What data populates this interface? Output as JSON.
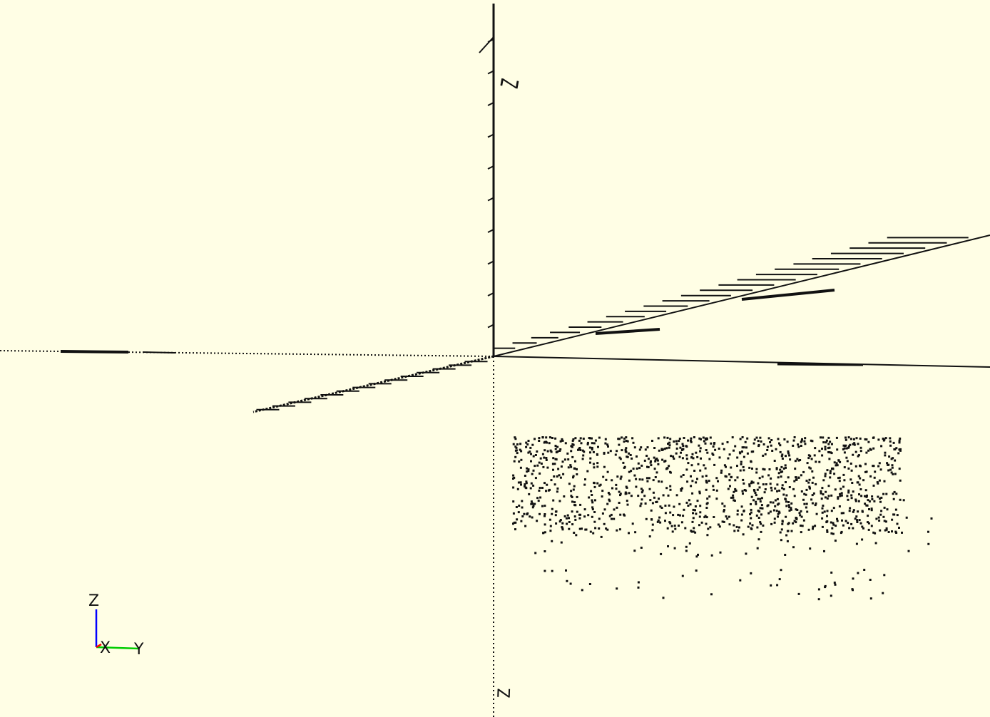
{
  "viewport": {
    "background": "#fffee5",
    "edge_color": "#111111",
    "show_axes": true,
    "show_scale_markers": true,
    "view": "perspective"
  },
  "axis_labels": {
    "z_top": "Z",
    "z_bottom": "Z"
  },
  "orientation_gizmo": {
    "z_label": "Z",
    "x_label": "X",
    "y_label": "Y",
    "x_color": "#ff0000",
    "y_color": "#00cc00",
    "z_color": "#0000ff"
  },
  "point_cloud": {
    "seed": 7,
    "dense_count": 1200,
    "sparse_count": 110,
    "bottom_row_count": 38,
    "color": "#111111"
  }
}
